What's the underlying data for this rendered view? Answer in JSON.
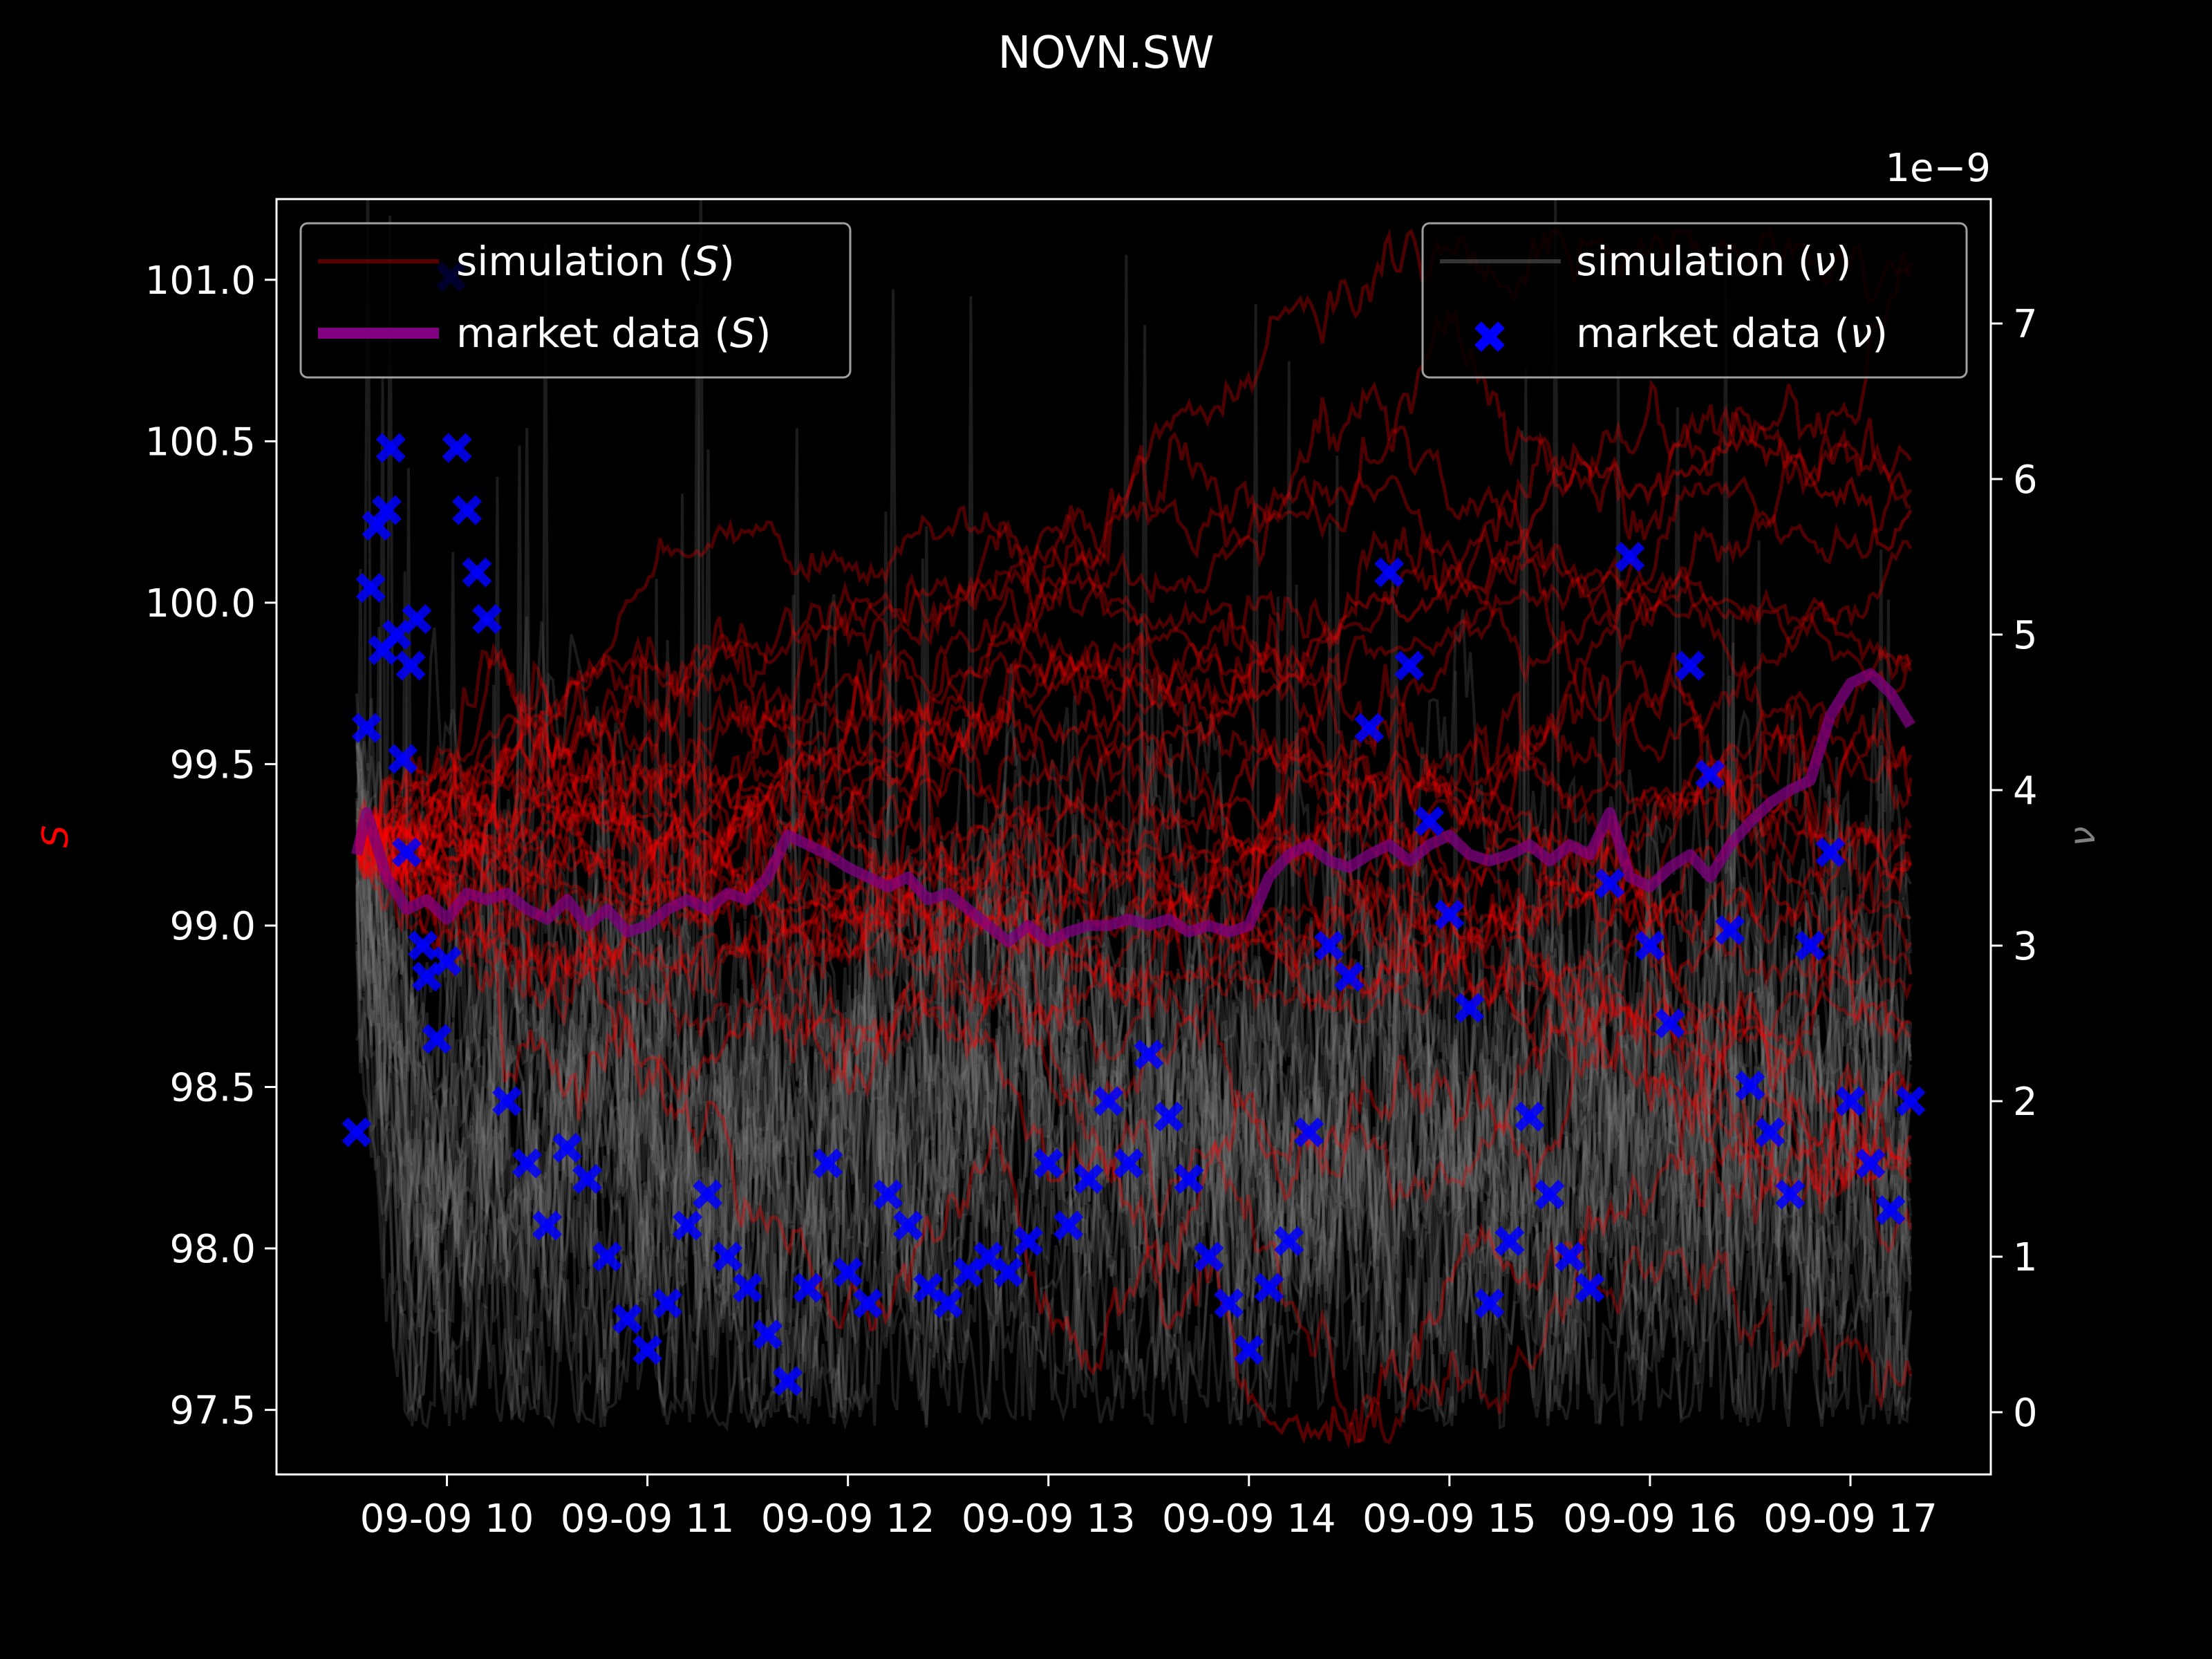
{
  "chart_data": {
    "type": "line",
    "title": "NOVN.SW",
    "x_tick_labels": [
      "09-09 10",
      "09-09 11",
      "09-09 12",
      "09-09 13",
      "09-09 14",
      "09-09 15",
      "09-09 16",
      "09-09 17"
    ],
    "x_range_hours": [
      9.15,
      17.7
    ],
    "y_left": {
      "label": "S",
      "range": [
        97.3,
        101.25
      ],
      "ticks": [
        "97.5",
        "98.0",
        "98.5",
        "99.0",
        "99.5",
        "100.0",
        "100.5",
        "101.0"
      ]
    },
    "y_right": {
      "label": "ν",
      "offset_text": "1e−9",
      "range": [
        -0.4,
        7.8
      ],
      "ticks": [
        "0",
        "1",
        "2",
        "3",
        "4",
        "5",
        "6",
        "7"
      ]
    },
    "legend_left": {
      "placement": "upper-left",
      "entries": [
        "simulation (S)",
        "market data (S)"
      ]
    },
    "legend_right": {
      "placement": "upper-right",
      "entries": [
        "simulation (ν)",
        "market data (ν)"
      ]
    },
    "colors": {
      "simulation_S": "#ff0000",
      "market_S": "#800080",
      "simulation_nu": "#808080",
      "market_nu": "#0000ff",
      "axes": "#ffffff",
      "background": "#000000"
    },
    "series": [
      {
        "name": "market data (S)",
        "axis": "left",
        "x": [
          9.55,
          9.6,
          9.7,
          9.8,
          9.9,
          10.0,
          10.1,
          10.2,
          10.3,
          10.4,
          10.5,
          10.6,
          10.7,
          10.8,
          10.9,
          11.0,
          11.1,
          11.2,
          11.3,
          11.4,
          11.5,
          11.6,
          11.7,
          11.8,
          11.9,
          12.0,
          12.1,
          12.2,
          12.3,
          12.4,
          12.5,
          12.6,
          12.7,
          12.8,
          12.9,
          13.0,
          13.1,
          13.2,
          13.3,
          13.4,
          13.5,
          13.6,
          13.7,
          13.8,
          13.9,
          14.0,
          14.1,
          14.2,
          14.3,
          14.4,
          14.5,
          14.6,
          14.7,
          14.8,
          14.9,
          15.0,
          15.1,
          15.2,
          15.3,
          15.4,
          15.5,
          15.6,
          15.7,
          15.8,
          15.9,
          16.0,
          16.1,
          16.2,
          16.3,
          16.4,
          16.5,
          16.6,
          16.7,
          16.8,
          16.9,
          17.0,
          17.1,
          17.2,
          17.3
        ],
        "y": [
          99.22,
          99.35,
          99.15,
          99.05,
          99.08,
          99.02,
          99.1,
          99.08,
          99.1,
          99.05,
          99.02,
          99.08,
          99.0,
          99.05,
          98.98,
          99.0,
          99.05,
          99.08,
          99.05,
          99.1,
          99.08,
          99.15,
          99.28,
          99.25,
          99.22,
          99.18,
          99.15,
          99.12,
          99.15,
          99.08,
          99.1,
          99.05,
          99.0,
          98.95,
          99.0,
          98.95,
          98.98,
          99.0,
          99.0,
          99.02,
          99.0,
          99.02,
          98.98,
          99.0,
          98.98,
          99.0,
          99.15,
          99.22,
          99.25,
          99.2,
          99.18,
          99.22,
          99.25,
          99.2,
          99.25,
          99.28,
          99.22,
          99.2,
          99.22,
          99.25,
          99.2,
          99.25,
          99.22,
          99.35,
          99.15,
          99.12,
          99.18,
          99.22,
          99.15,
          99.25,
          99.32,
          99.38,
          99.42,
          99.45,
          99.65,
          99.75,
          99.78,
          99.72,
          99.62
        ]
      },
      {
        "name": "market data (ν)",
        "axis": "right",
        "x": [
          9.55,
          9.6,
          9.62,
          9.65,
          9.68,
          9.7,
          9.72,
          9.75,
          9.78,
          9.8,
          9.82,
          9.85,
          9.88,
          9.9,
          9.95,
          10.0,
          10.02,
          10.05,
          10.1,
          10.15,
          10.2,
          10.3,
          10.4,
          10.5,
          10.6,
          10.7,
          10.8,
          10.9,
          11.0,
          11.1,
          11.2,
          11.3,
          11.4,
          11.5,
          11.6,
          11.7,
          11.8,
          11.9,
          12.0,
          12.1,
          12.2,
          12.3,
          12.4,
          12.5,
          12.6,
          12.7,
          12.8,
          12.9,
          13.0,
          13.1,
          13.2,
          13.3,
          13.4,
          13.5,
          13.6,
          13.7,
          13.8,
          13.9,
          14.0,
          14.1,
          14.2,
          14.3,
          14.4,
          14.5,
          14.6,
          14.7,
          14.8,
          14.9,
          15.0,
          15.1,
          15.2,
          15.3,
          15.4,
          15.5,
          15.6,
          15.7,
          15.8,
          15.9,
          16.0,
          16.1,
          16.2,
          16.3,
          16.4,
          16.5,
          16.6,
          16.7,
          16.8,
          16.9,
          17.0,
          17.1,
          17.2,
          17.3
        ],
        "y": [
          1.8,
          4.4,
          5.3,
          5.7,
          4.9,
          5.8,
          6.2,
          5.0,
          4.2,
          3.6,
          4.8,
          5.1,
          3.0,
          2.8,
          2.4,
          2.9,
          7.3,
          6.2,
          5.8,
          5.4,
          5.1,
          2.0,
          1.6,
          1.2,
          1.7,
          1.5,
          1.0,
          0.6,
          0.4,
          0.7,
          1.2,
          1.4,
          1.0,
          0.8,
          0.5,
          0.2,
          0.8,
          1.6,
          0.9,
          0.7,
          1.4,
          1.2,
          0.8,
          0.7,
          0.9,
          1.0,
          0.9,
          1.1,
          1.6,
          1.2,
          1.5,
          2.0,
          1.6,
          2.3,
          1.9,
          1.5,
          1.0,
          0.7,
          0.4,
          0.8,
          1.1,
          1.8,
          3.0,
          2.8,
          4.4,
          5.4,
          4.8,
          3.8,
          3.2,
          2.6,
          0.7,
          1.1,
          1.9,
          1.4,
          1.0,
          0.8,
          3.4,
          5.5,
          3.0,
          2.5,
          4.8,
          4.1,
          3.1,
          2.1,
          1.8,
          1.4,
          3.0,
          3.6,
          2.0,
          1.6,
          1.3,
          2.0
        ]
      }
    ]
  }
}
